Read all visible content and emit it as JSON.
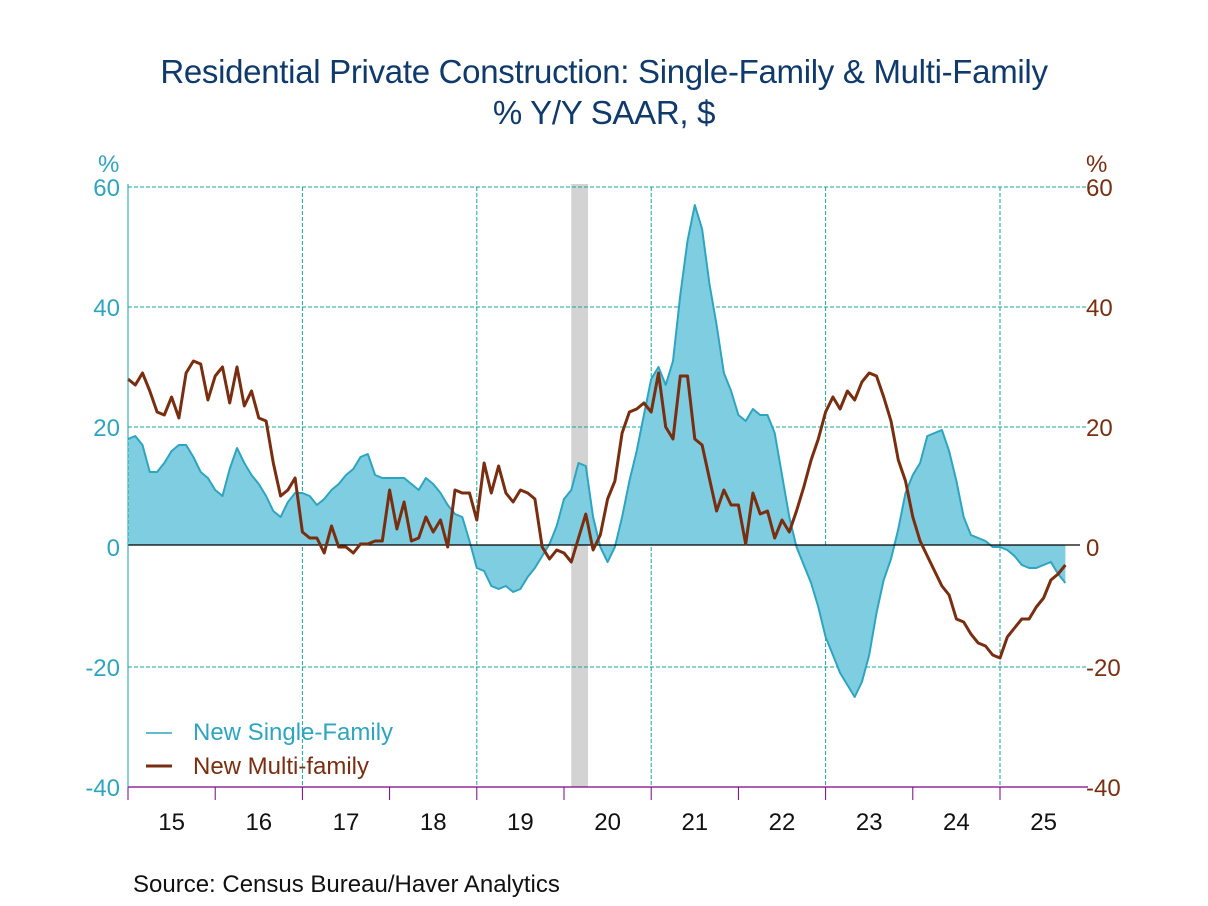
{
  "chart_data": {
    "type": "area",
    "title": "Residential Private Construction: Single-Family & Multi-Family",
    "subtitle": "% Y/Y   SAAR, $",
    "source": "Source:  Census Bureau/Haver Analytics",
    "left_axis": {
      "unit": "%",
      "ylim": [
        -40,
        60
      ],
      "ticks": [
        "60",
        "40",
        "20",
        "0",
        "-20",
        "-40"
      ],
      "tick_values": [
        60,
        40,
        20,
        0,
        -20,
        -40
      ]
    },
    "right_axis": {
      "unit": "%",
      "ylim": [
        -40,
        60
      ],
      "ticks": [
        "60",
        "40",
        "20",
        "0",
        "-20",
        "-40"
      ],
      "tick_values": [
        60,
        40,
        20,
        0,
        -20,
        -40
      ]
    },
    "x_axis": {
      "start": "2015-01",
      "end": "2025-12",
      "tick_labels": [
        "15",
        "16",
        "17",
        "18",
        "19",
        "20",
        "21",
        "22",
        "23",
        "24",
        "25"
      ],
      "gridline_years": [
        2015,
        2017,
        2019,
        2021,
        2023,
        2025
      ]
    },
    "grid": true,
    "recession": {
      "start": "2020-02",
      "end": "2020-04"
    },
    "legend": {
      "placement": "bottom-left",
      "entries": [
        {
          "label": "New Single-Family",
          "color": "#2ea5c0"
        },
        {
          "label": "New Multi-family",
          "color": "#7a2e10"
        }
      ]
    },
    "series": [
      {
        "name": "New Single-Family",
        "style": "filled-area",
        "color": "#2ea5c0",
        "fill": "#7ecde0",
        "start": "2015-01",
        "frequency": "monthly",
        "values": [
          18,
          18.5,
          17,
          12.5,
          12.5,
          14,
          16,
          17,
          17,
          15,
          12.5,
          11.5,
          9.5,
          8.5,
          13,
          16.5,
          14,
          12,
          10.5,
          8.5,
          6,
          5,
          7.5,
          9,
          9,
          8.5,
          7,
          8,
          9.5,
          10.5,
          12,
          13,
          15,
          15.5,
          12,
          11.5,
          11.5,
          11.5,
          11.5,
          10.5,
          9.5,
          11.5,
          10.5,
          9,
          7,
          5.5,
          5,
          1,
          -3.5,
          -4,
          -6.5,
          -7,
          -6.5,
          -7.5,
          -7,
          -5,
          -3.5,
          -1.5,
          0.5,
          3.5,
          8,
          9.5,
          14,
          13.5,
          5,
          0,
          -2.5,
          0,
          5,
          11,
          16,
          22,
          28,
          30,
          27,
          31,
          42,
          51,
          57,
          53,
          44,
          37,
          29,
          26,
          22,
          21,
          23,
          22,
          22,
          19,
          12,
          5,
          0,
          -3,
          -6,
          -10,
          -15,
          -18,
          -21,
          -23,
          -25,
          -22.5,
          -18,
          -11,
          -5.5,
          -2,
          3,
          9,
          12,
          14,
          18.5,
          19,
          19.5,
          16,
          11,
          5,
          2,
          1.5,
          1,
          0,
          0,
          -0.5,
          -1.5,
          -3,
          -3.5,
          -3.5,
          -3,
          -2.5,
          -4.5,
          -6
        ]
      },
      {
        "name": "New Multi-family",
        "style": "line",
        "color": "#7a2e10",
        "start": "2015-01",
        "frequency": "monthly",
        "values": [
          28,
          27,
          29,
          26,
          22.5,
          22,
          25,
          21.5,
          29,
          31,
          30.5,
          24.5,
          28.5,
          30,
          24,
          30,
          23.5,
          26,
          21.5,
          21,
          14,
          8.5,
          9.5,
          11.5,
          2.5,
          1.5,
          1.5,
          -1,
          3.5,
          0,
          0,
          -1,
          0.5,
          0.5,
          1,
          1,
          9.5,
          3,
          7.5,
          1,
          1.5,
          5,
          2.5,
          4.5,
          0,
          9.5,
          9,
          9,
          4.5,
          14,
          9,
          13.5,
          9,
          7.5,
          9.5,
          9,
          8,
          0,
          -2,
          -0.5,
          -1,
          -2.5,
          1.5,
          5.5,
          -0.5,
          2,
          8,
          11,
          19,
          22.5,
          23,
          24,
          22.5,
          29,
          20,
          18,
          28.5,
          28.5,
          18,
          17,
          11.5,
          6,
          9.5,
          7,
          7,
          0.5,
          9,
          5.5,
          6,
          1.5,
          4.5,
          2.5,
          6,
          10,
          14.5,
          18,
          22.5,
          25,
          23,
          26,
          24.5,
          27.5,
          29,
          28.5,
          25,
          21,
          14.5,
          11,
          5,
          1,
          -1.5,
          -4,
          -6.5,
          -8,
          -12,
          -12.5,
          -14.5,
          -16,
          -16.5,
          -18,
          -18.5,
          -15,
          -13.5,
          -12,
          -12,
          -10,
          -8.5,
          -5.5,
          -4.5,
          -3
        ]
      }
    ]
  }
}
